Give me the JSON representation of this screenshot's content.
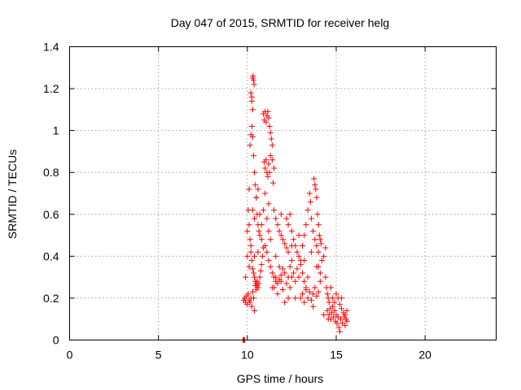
{
  "chart_data": {
    "type": "scatter",
    "title": "Day 047 of 2015, SRMTID for receiver helg",
    "xlabel": "GPS time / hours",
    "ylabel": "SRMTID / TECUs",
    "xlim": [
      0,
      24
    ],
    "ylim": [
      0,
      1.4
    ],
    "x_ticks": [
      0,
      5,
      10,
      15,
      20
    ],
    "y_ticks": [
      0,
      0.2,
      0.4,
      0.6,
      0.8,
      1,
      1.2,
      1.4
    ],
    "x_tick_labels": [
      "0",
      "5",
      "10",
      "15",
      "20"
    ],
    "y_tick_labels": [
      "0",
      "0.2",
      "0.4",
      "0.6",
      "0.8",
      "1",
      "1.2",
      "1.4"
    ],
    "grid": true,
    "marker": "plus",
    "color": "#ff0000",
    "series": [
      {
        "name": "SRMTID",
        "points": [
          [
            9.75,
            0.0
          ],
          [
            9.8,
            0.0
          ],
          [
            9.85,
            0.0
          ],
          [
            9.8,
            0.19
          ],
          [
            9.85,
            0.2
          ],
          [
            9.9,
            0.18
          ],
          [
            9.95,
            0.21
          ],
          [
            10.0,
            0.17
          ],
          [
            10.05,
            0.22
          ],
          [
            10.1,
            0.19
          ],
          [
            10.15,
            0.18
          ],
          [
            10.2,
            0.2
          ],
          [
            10.25,
            0.16
          ],
          [
            10.3,
            0.23
          ],
          [
            10.35,
            0.2
          ],
          [
            10.4,
            0.14
          ],
          [
            10.45,
            0.26
          ],
          [
            10.5,
            0.24
          ],
          [
            10.55,
            0.28
          ],
          [
            10.6,
            0.25
          ],
          [
            10.05,
            0.62
          ],
          [
            10.1,
            0.72
          ],
          [
            10.15,
            0.93
          ],
          [
            10.2,
            0.98
          ],
          [
            10.25,
            1.02
          ],
          [
            10.3,
            0.97
          ],
          [
            10.35,
            0.88
          ],
          [
            10.4,
            0.8
          ],
          [
            10.45,
            0.74
          ],
          [
            10.5,
            0.68
          ],
          [
            10.55,
            0.6
          ],
          [
            10.6,
            0.55
          ],
          [
            10.65,
            0.52
          ],
          [
            10.7,
            0.5
          ],
          [
            10.2,
            1.18
          ],
          [
            10.25,
            1.14
          ],
          [
            10.3,
            1.1
          ],
          [
            10.25,
            1.16
          ],
          [
            10.32,
            1.26
          ],
          [
            10.35,
            1.24
          ],
          [
            10.38,
            1.22
          ],
          [
            10.3,
            1.25
          ],
          [
            10.1,
            0.55
          ],
          [
            10.15,
            0.48
          ],
          [
            10.2,
            0.42
          ],
          [
            10.25,
            0.38
          ],
          [
            10.3,
            0.34
          ],
          [
            10.35,
            0.32
          ],
          [
            10.4,
            0.3
          ],
          [
            10.45,
            0.28
          ],
          [
            10.5,
            0.27
          ],
          [
            10.55,
            0.26
          ],
          [
            10.6,
            0.25
          ],
          [
            10.65,
            0.27
          ],
          [
            10.7,
            0.3
          ],
          [
            10.75,
            0.33
          ],
          [
            10.8,
            0.36
          ],
          [
            10.85,
            0.4
          ],
          [
            10.9,
            0.44
          ],
          [
            10.4,
            0.58
          ],
          [
            10.5,
            0.68
          ],
          [
            10.6,
            0.72
          ],
          [
            10.7,
            0.6
          ],
          [
            10.8,
            0.55
          ],
          [
            10.9,
            0.62
          ],
          [
            11.0,
            0.7
          ],
          [
            11.1,
            0.58
          ],
          [
            11.2,
            0.52
          ],
          [
            11.3,
            0.48
          ],
          [
            10.9,
            1.08
          ],
          [
            10.95,
            1.05
          ],
          [
            11.0,
            1.09
          ],
          [
            11.05,
            1.04
          ],
          [
            11.1,
            1.07
          ],
          [
            11.15,
            1.09
          ],
          [
            11.2,
            1.06
          ],
          [
            11.25,
            1.02
          ],
          [
            11.3,
            0.99
          ],
          [
            11.35,
            0.96
          ],
          [
            11.4,
            0.93
          ],
          [
            10.95,
            0.85
          ],
          [
            11.0,
            0.82
          ],
          [
            11.05,
            0.86
          ],
          [
            11.1,
            0.8
          ],
          [
            11.15,
            0.78
          ],
          [
            11.2,
            0.84
          ],
          [
            11.25,
            0.8
          ],
          [
            11.3,
            0.88
          ],
          [
            11.4,
            0.86
          ],
          [
            11.5,
            0.82
          ],
          [
            11.45,
            0.75
          ],
          [
            11.0,
            0.45
          ],
          [
            11.1,
            0.42
          ],
          [
            11.2,
            0.38
          ],
          [
            11.3,
            0.35
          ],
          [
            11.4,
            0.32
          ],
          [
            11.5,
            0.3
          ],
          [
            11.6,
            0.28
          ],
          [
            11.7,
            0.27
          ],
          [
            11.8,
            0.29
          ],
          [
            11.9,
            0.31
          ],
          [
            12.0,
            0.34
          ],
          [
            11.5,
            0.62
          ],
          [
            11.6,
            0.58
          ],
          [
            11.7,
            0.55
          ],
          [
            11.8,
            0.52
          ],
          [
            11.9,
            0.5
          ],
          [
            12.0,
            0.48
          ],
          [
            12.1,
            0.46
          ],
          [
            12.2,
            0.44
          ],
          [
            12.3,
            0.42
          ],
          [
            11.5,
            0.25
          ],
          [
            11.6,
            0.3
          ],
          [
            11.7,
            0.22
          ],
          [
            11.8,
            0.35
          ],
          [
            11.9,
            0.28
          ],
          [
            12.0,
            0.24
          ],
          [
            12.1,
            0.32
          ],
          [
            12.2,
            0.27
          ],
          [
            12.3,
            0.3
          ],
          [
            12.4,
            0.35
          ],
          [
            12.5,
            0.38
          ],
          [
            12.2,
            0.58
          ],
          [
            12.3,
            0.55
          ],
          [
            12.4,
            0.6
          ],
          [
            12.5,
            0.52
          ],
          [
            12.6,
            0.48
          ],
          [
            12.7,
            0.45
          ],
          [
            12.8,
            0.42
          ],
          [
            12.9,
            0.4
          ],
          [
            13.0,
            0.38
          ],
          [
            12.3,
            0.2
          ],
          [
            12.4,
            0.25
          ],
          [
            12.5,
            0.3
          ],
          [
            12.6,
            0.32
          ],
          [
            12.7,
            0.28
          ],
          [
            12.8,
            0.34
          ],
          [
            12.9,
            0.3
          ],
          [
            13.0,
            0.36
          ],
          [
            13.1,
            0.32
          ],
          [
            13.2,
            0.28
          ],
          [
            13.3,
            0.25
          ],
          [
            13.0,
            0.2
          ],
          [
            13.1,
            0.22
          ],
          [
            13.2,
            0.18
          ],
          [
            13.3,
            0.24
          ],
          [
            13.4,
            0.2
          ],
          [
            13.5,
            0.23
          ],
          [
            13.6,
            0.19
          ],
          [
            13.7,
            0.22
          ],
          [
            13.8,
            0.25
          ],
          [
            13.9,
            0.21
          ],
          [
            14.0,
            0.23
          ],
          [
            13.1,
            0.45
          ],
          [
            13.2,
            0.5
          ],
          [
            13.3,
            0.55
          ],
          [
            13.4,
            0.62
          ],
          [
            13.5,
            0.7
          ],
          [
            13.55,
            0.66
          ],
          [
            13.6,
            0.58
          ],
          [
            13.7,
            0.52
          ],
          [
            13.8,
            0.48
          ],
          [
            13.9,
            0.45
          ],
          [
            14.0,
            0.42
          ],
          [
            13.75,
            0.77
          ],
          [
            13.8,
            0.74
          ],
          [
            13.85,
            0.72
          ],
          [
            13.9,
            0.68
          ],
          [
            13.95,
            0.6
          ],
          [
            14.0,
            0.55
          ],
          [
            14.05,
            0.5
          ],
          [
            14.1,
            0.48
          ],
          [
            14.15,
            0.46
          ],
          [
            14.0,
            0.35
          ],
          [
            14.1,
            0.32
          ],
          [
            14.2,
            0.38
          ],
          [
            14.3,
            0.4
          ],
          [
            14.4,
            0.3
          ],
          [
            14.45,
            0.25
          ],
          [
            14.5,
            0.22
          ],
          [
            14.55,
            0.2
          ],
          [
            14.6,
            0.18
          ],
          [
            14.5,
            0.14
          ],
          [
            14.55,
            0.1
          ],
          [
            14.6,
            0.12
          ],
          [
            14.65,
            0.15
          ],
          [
            14.7,
            0.1
          ],
          [
            14.75,
            0.13
          ],
          [
            14.8,
            0.16
          ],
          [
            14.85,
            0.11
          ],
          [
            14.9,
            0.14
          ],
          [
            14.95,
            0.09
          ],
          [
            15.0,
            0.12
          ],
          [
            15.05,
            0.08
          ],
          [
            15.1,
            0.11
          ],
          [
            15.15,
            0.06
          ],
          [
            15.2,
            0.04
          ],
          [
            14.8,
            0.2
          ],
          [
            14.9,
            0.18
          ],
          [
            15.0,
            0.22
          ],
          [
            15.1,
            0.2
          ],
          [
            15.2,
            0.17
          ],
          [
            15.3,
            0.15
          ],
          [
            15.4,
            0.13
          ],
          [
            15.5,
            0.12
          ],
          [
            15.55,
            0.1
          ],
          [
            15.6,
            0.09
          ],
          [
            15.25,
            0.1
          ],
          [
            15.35,
            0.08
          ],
          [
            15.45,
            0.11
          ],
          [
            15.5,
            0.07
          ],
          [
            9.9,
            0.3
          ],
          [
            10.0,
            0.4
          ],
          [
            10.0,
            0.52
          ],
          [
            10.1,
            0.35
          ],
          [
            10.2,
            0.45
          ],
          [
            10.3,
            0.62
          ],
          [
            10.4,
            0.4
          ],
          [
            10.6,
            0.42
          ],
          [
            10.8,
            0.48
          ],
          [
            11.2,
            0.65
          ],
          [
            11.4,
            0.25
          ],
          [
            11.6,
            0.4
          ],
          [
            11.9,
            0.6
          ],
          [
            12.1,
            0.18
          ],
          [
            12.5,
            0.45
          ],
          [
            12.7,
            0.2
          ],
          [
            12.9,
            0.5
          ],
          [
            13.2,
            0.38
          ],
          [
            13.4,
            0.3
          ],
          [
            13.6,
            0.42
          ],
          [
            13.7,
            0.16
          ],
          [
            13.9,
            0.35
          ],
          [
            14.1,
            0.28
          ],
          [
            14.3,
            0.12
          ],
          [
            14.4,
            0.44
          ],
          [
            14.7,
            0.25
          ],
          [
            15.3,
            0.2
          ],
          [
            15.6,
            0.14
          ]
        ]
      }
    ]
  }
}
